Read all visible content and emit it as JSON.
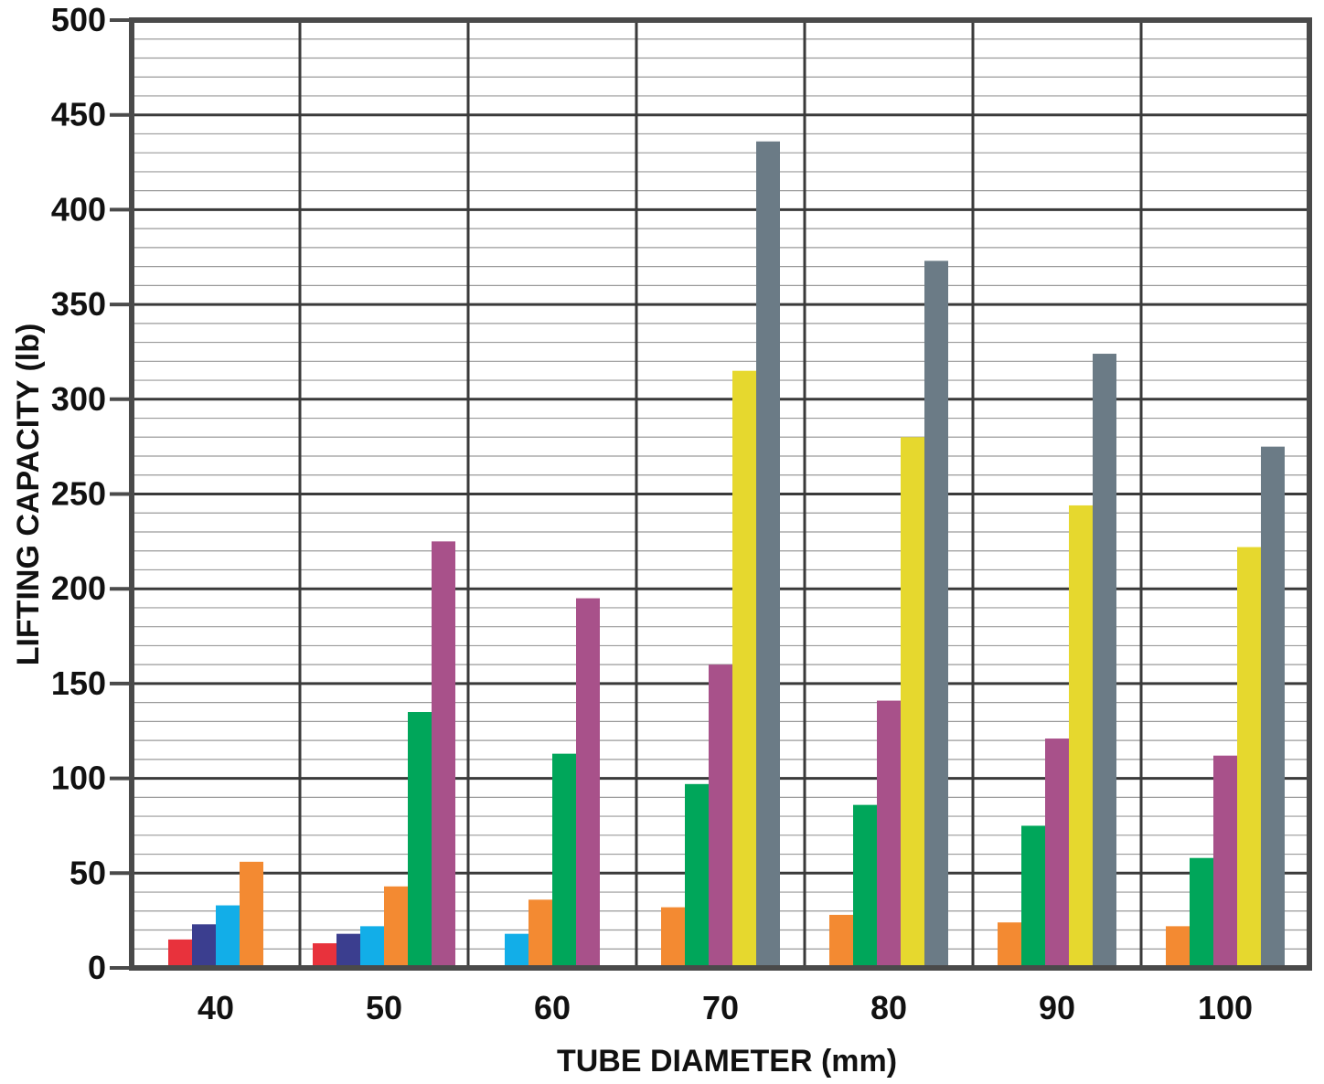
{
  "chart_data": {
    "type": "bar",
    "title": "",
    "xlabel": "TUBE DIAMETER (mm)",
    "ylabel": "LIFTING CAPACITY (lb)",
    "ylim": [
      0,
      500
    ],
    "y_ticks": [
      "0",
      "50",
      "100",
      "150",
      "200",
      "250",
      "300",
      "350",
      "400",
      "450",
      "500"
    ],
    "grid": true,
    "categories": [
      "40",
      "50",
      "60",
      "70",
      "80",
      "90",
      "100"
    ],
    "series": [
      {
        "color": "#e8323c",
        "values": [
          15,
          13,
          null,
          null,
          null,
          null,
          null
        ]
      },
      {
        "color": "#3b3e8f",
        "values": [
          23,
          18,
          null,
          null,
          null,
          null,
          null
        ]
      },
      {
        "color": "#12aee8",
        "values": [
          33,
          22,
          18,
          null,
          null,
          null,
          null
        ]
      },
      {
        "color": "#f38a32",
        "values": [
          56,
          43,
          36,
          32,
          28,
          24,
          22
        ]
      },
      {
        "color": "#00a65a",
        "values": [
          null,
          135,
          113,
          97,
          86,
          75,
          58
        ]
      },
      {
        "color": "#a8518a",
        "values": [
          null,
          225,
          195,
          160,
          141,
          121,
          112
        ]
      },
      {
        "color": "#e6d82e",
        "values": [
          null,
          null,
          null,
          315,
          280,
          244,
          222
        ]
      },
      {
        "color": "#6b7b86",
        "values": [
          null,
          null,
          null,
          436,
          373,
          324,
          275
        ]
      }
    ]
  }
}
